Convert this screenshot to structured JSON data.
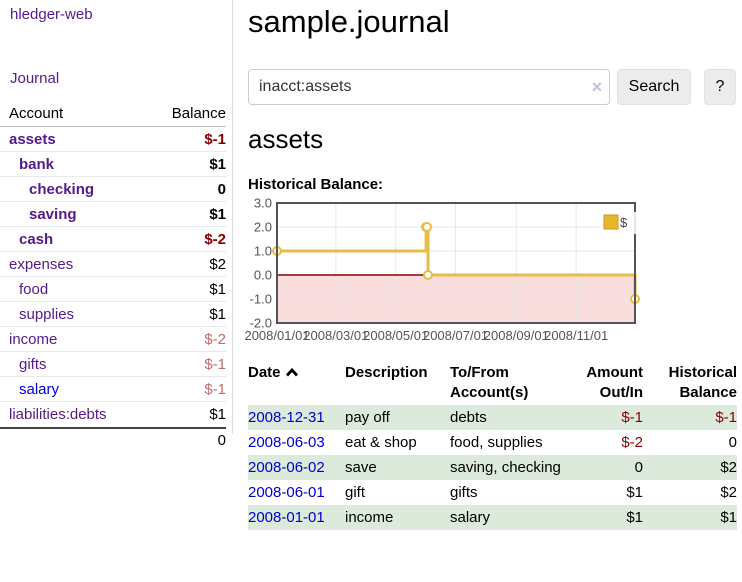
{
  "colors": {
    "purple_link": "#551a8b",
    "blue_link": "#0000cc",
    "neg_strong": "#8b0000",
    "neg_muted": "#c06d6d",
    "stripe_green": "#dbeada",
    "chart_line": "#e8bd45",
    "chart_frame": "#545454"
  },
  "sidebar": {
    "brand": "hledger-web",
    "nav_journal": "Journal",
    "accounts": {
      "col_account": "Account",
      "col_balance": "Balance",
      "rows": [
        {
          "name": "assets",
          "balance": "$-1",
          "indent": 1,
          "bold": true,
          "balance_style": "neg-strong"
        },
        {
          "name": "bank",
          "balance": "$1",
          "indent": 2,
          "bold": true,
          "balance_style": "pos"
        },
        {
          "name": "checking",
          "balance": "0",
          "indent": 3,
          "bold": true,
          "balance_style": "pos"
        },
        {
          "name": "saving",
          "balance": "$1",
          "indent": 3,
          "bold": true,
          "balance_style": "pos"
        },
        {
          "name": "cash",
          "balance": "$-2",
          "indent": 2,
          "bold": true,
          "balance_style": "neg-strong"
        },
        {
          "name": "expenses",
          "balance": "$2",
          "indent": 1,
          "bold": false,
          "balance_style": "pos"
        },
        {
          "name": "food",
          "balance": "$1",
          "indent": 2,
          "bold": false,
          "balance_style": "pos"
        },
        {
          "name": "supplies",
          "balance": "$1",
          "indent": 2,
          "bold": false,
          "balance_style": "pos"
        },
        {
          "name": "income",
          "balance": "$-2",
          "indent": 1,
          "bold": false,
          "balance_style": "neg-muted"
        },
        {
          "name": "gifts",
          "balance": "$-1",
          "indent": 2,
          "bold": false,
          "balance_style": "neg-muted"
        },
        {
          "name": "salary",
          "balance": "$-1",
          "indent": 2,
          "bold": false,
          "balance_style": "neg-muted",
          "link": "blue"
        },
        {
          "name": "liabilities:debts",
          "balance": "$1",
          "indent": 1,
          "bold": false,
          "balance_style": "pos"
        }
      ],
      "total": "0"
    }
  },
  "main": {
    "title": "sample.journal",
    "search": {
      "value": "inacct:assets",
      "clear": "×",
      "search_button": "Search",
      "help_button": "?"
    },
    "heading": "assets",
    "chart_title": "Historical Balance:"
  },
  "chart_data": {
    "type": "line",
    "step": true,
    "title": "Historical Balance",
    "series": [
      {
        "name": "$",
        "color": "#e8bd45",
        "x_dates": [
          "2008-01-01",
          "2008-06-01",
          "2008-06-02",
          "2008-06-03",
          "2008-12-31"
        ],
        "x_days": [
          0,
          152,
          153,
          154,
          365
        ],
        "values": [
          1,
          2,
          2,
          0,
          -1
        ]
      }
    ],
    "x_ticks": [
      {
        "day": 0,
        "label": "2008/01/01"
      },
      {
        "day": 60,
        "label": "2008/03/01"
      },
      {
        "day": 121,
        "label": "2008/05/01"
      },
      {
        "day": 182,
        "label": "2008/07/01"
      },
      {
        "day": 244,
        "label": "2008/09/01"
      },
      {
        "day": 305,
        "label": "2008/11/01"
      }
    ],
    "x_range_days": [
      0,
      365
    ],
    "y_ticks": [
      "3.0",
      "2.0",
      "1.0",
      "0.0",
      "-1.0",
      "-2.0"
    ],
    "ylim": [
      -2,
      3
    ],
    "grid": true,
    "legend": {
      "position": "top-right",
      "label": "$"
    },
    "negative_area_fill": "#fadddd",
    "zero_line_color": "#8b0000"
  },
  "register": {
    "headers": {
      "date": "Date",
      "description": "Description",
      "account_line1": "To/From",
      "account_line2": "Account(s)",
      "amount_line1": "Amount",
      "amount_line2": "Out/In",
      "balance_line1": "Historical",
      "balance_line2": "Balance"
    },
    "rows": [
      {
        "date": "2008-12-31",
        "description": "pay off",
        "accounts": "debts",
        "amount": "$-1",
        "amount_neg": true,
        "balance": "$-1",
        "balance_neg": true
      },
      {
        "date": "2008-06-03",
        "description": "eat & shop",
        "accounts": "food, supplies",
        "amount": "$-2",
        "amount_neg": true,
        "balance": "0",
        "balance_neg": false
      },
      {
        "date": "2008-06-02",
        "description": "save",
        "accounts": "saving, checking",
        "amount": "0",
        "amount_neg": false,
        "balance": "$2",
        "balance_neg": false
      },
      {
        "date": "2008-06-01",
        "description": "gift",
        "accounts": "gifts",
        "amount": "$1",
        "amount_neg": false,
        "balance": "$2",
        "balance_neg": false
      },
      {
        "date": "2008-01-01",
        "description": "income",
        "accounts": "salary",
        "amount": "$1",
        "amount_neg": false,
        "balance": "$1",
        "balance_neg": false
      }
    ]
  }
}
